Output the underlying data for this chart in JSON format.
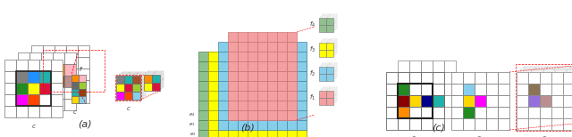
{
  "fig_width": 6.4,
  "fig_height": 1.54,
  "dpi": 100,
  "bg_color": "#ffffff",
  "panel_a_label": "(a)",
  "panel_b_label": "(b)",
  "panel_c_label": "(c)",
  "a_main_colors": [
    [
      "w",
      "w",
      "w",
      "w",
      "w",
      "w"
    ],
    [
      "w",
      "#808080",
      "#1e90ff",
      "#20b2aa",
      "w",
      "w"
    ],
    [
      "w",
      "#228b22",
      "#ffff00",
      "#dc143c",
      "w",
      "w"
    ],
    [
      "w",
      "#ff00ff",
      "#ff4500",
      "#a0522d",
      "w",
      "w"
    ],
    [
      "w",
      "w",
      "w",
      "w",
      "w",
      "w"
    ],
    [
      "w",
      "w",
      "w",
      "w",
      "w",
      "w"
    ]
  ],
  "a_mid_colors": [
    [
      "w",
      "w",
      "w",
      "w",
      "w"
    ],
    [
      "w",
      "#dda0dd",
      "#4f4f4f",
      "#ff8c00",
      "#ffb6c1"
    ],
    [
      "w",
      "#4f4f4f",
      "#9acd32",
      "#ff8c00",
      "#bc8f8f"
    ],
    [
      "w",
      "#ffd700",
      "#87ceeb",
      "w",
      "w"
    ],
    [
      "w",
      "w",
      "w",
      "w",
      "w"
    ]
  ],
  "a_front_colors": [
    [
      "w",
      "w",
      "w",
      "w",
      "w"
    ],
    [
      "w",
      "#ff8c00",
      "#ff69b4",
      "w",
      "w"
    ],
    [
      "w",
      "#ffff00",
      "#dc143c",
      "w",
      "w"
    ],
    [
      "w",
      "#ff00ff",
      "#bc8f8f",
      "w",
      "w"
    ],
    [
      "w",
      "w",
      "w",
      "w",
      "w"
    ]
  ],
  "a_small_colors": [
    [
      "#808080",
      "#20b2aa",
      "#a0522d"
    ],
    [
      "#ffff00",
      "#dc143c",
      "#808080"
    ],
    [
      "#ff00ff",
      "#ff4500",
      "#9acd32"
    ]
  ],
  "a_small2_colors": [
    [
      "#ff8c00",
      "#20b2aa"
    ],
    [
      "#ffff00",
      "#dc143c"
    ],
    [
      "#ff00ff",
      "#ff4500"
    ]
  ],
  "b_pink": "#f4a0a0",
  "b_cyan": "#87ceeb",
  "b_yellow": "#ffff00",
  "b_green": "#90c090",
  "c_left_colors": [
    [
      "w",
      "w",
      "w",
      "w",
      "w"
    ],
    [
      "w",
      "#228b22",
      "w",
      "w",
      "w"
    ],
    [
      "w",
      "#8b0000",
      "#ffff00",
      "#00008b",
      "#20b2aa"
    ],
    [
      "w",
      "#ff8c00",
      "w",
      "w",
      "w"
    ],
    [
      "w",
      "w",
      "w",
      "w",
      "w"
    ]
  ],
  "c_mid_colors": [
    [
      "w",
      "w",
      "w",
      "w",
      "w"
    ],
    [
      "w",
      "#87ceeb",
      "w",
      "w",
      "w"
    ],
    [
      "w",
      "#ffd700",
      "#ff00ff",
      "w",
      "w"
    ],
    [
      "w",
      "#4f9f4f",
      "w",
      "w",
      "w"
    ],
    [
      "w",
      "w",
      "w",
      "w",
      "w"
    ]
  ],
  "c_right1_colors": [
    [
      "w",
      "w",
      "w",
      "w",
      "w"
    ],
    [
      "w",
      "#00008b",
      "#008080",
      "w",
      "w"
    ],
    [
      "w",
      "w",
      "#000000",
      "w",
      "w"
    ],
    [
      "w",
      "w",
      "w",
      "w",
      "w"
    ],
    [
      "w",
      "w",
      "w",
      "w",
      "w"
    ]
  ],
  "c_right2_colors": [
    [
      "w",
      "w",
      "w",
      "w",
      "w"
    ],
    [
      "w",
      "w",
      "#8b7355",
      "w",
      "w"
    ],
    [
      "w",
      "#9370db",
      "#bc8f8f",
      "w",
      "w"
    ],
    [
      "w",
      "w",
      "w",
      "w",
      "w"
    ],
    [
      "w",
      "w",
      "w",
      "w",
      "w"
    ]
  ]
}
